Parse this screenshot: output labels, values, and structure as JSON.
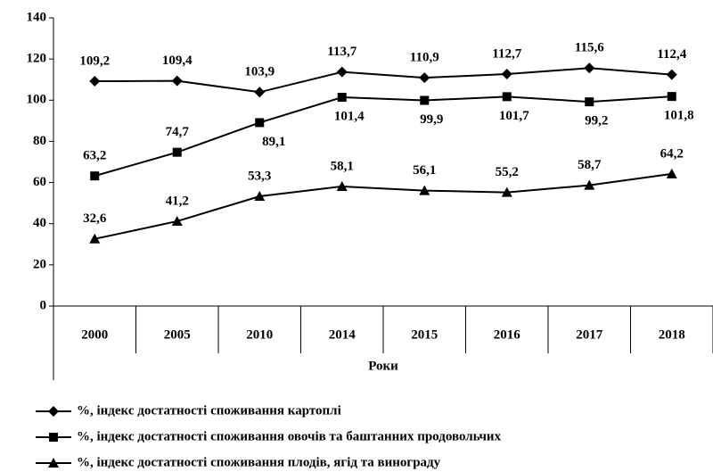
{
  "chart_data": {
    "type": "line",
    "categories": [
      "2000",
      "2005",
      "2010",
      "2014",
      "2015",
      "2016",
      "2017",
      "2018"
    ],
    "x_label": "Роки",
    "ylim": [
      0,
      140
    ],
    "yticks": [
      0,
      20,
      40,
      60,
      80,
      100,
      120,
      140
    ],
    "series": [
      {
        "name": "%, індекс достатності споживання картоплі",
        "color": "#000000",
        "marker": "diamond",
        "values": [
          109.2,
          109.4,
          103.9,
          113.7,
          110.9,
          112.7,
          115.6,
          112.4
        ],
        "value_labels": [
          "109,2",
          "109,4",
          "103,9",
          "113,7",
          "110,9",
          "112,7",
          "115,6",
          "112,4"
        ]
      },
      {
        "name": "%, індекс достатності споживання овочів та баштанних продовольчих",
        "color": "#000000",
        "marker": "square",
        "values": [
          63.2,
          74.7,
          89.1,
          101.4,
          99.9,
          101.7,
          99.2,
          101.8
        ],
        "value_labels": [
          "63,2",
          "74,7",
          "89,1",
          "101,4",
          "99,9",
          "101,7",
          "99,2",
          "101,8"
        ]
      },
      {
        "name": "%, індекс достатності споживання плодів, ягід та  винограду",
        "color": "#000000",
        "marker": "triangle",
        "values": [
          32.6,
          41.2,
          53.3,
          58.1,
          56.1,
          55.2,
          58.7,
          64.2
        ],
        "value_labels": [
          "32,6",
          "41,2",
          "53,3",
          "58,1",
          "56,1",
          "55,2",
          "58,7",
          "64,2"
        ]
      }
    ]
  }
}
